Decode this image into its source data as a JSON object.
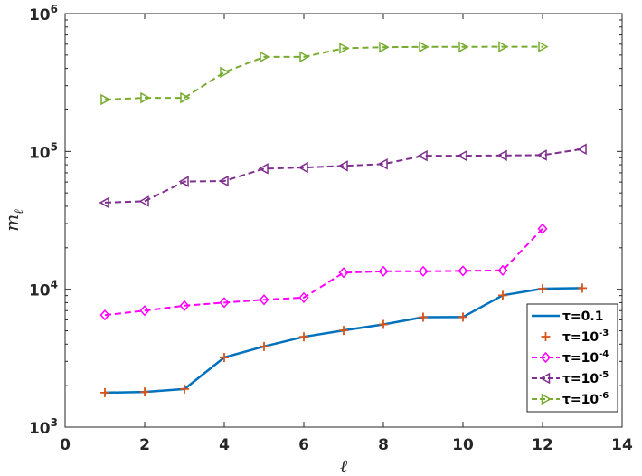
{
  "chart_data": {
    "type": "line",
    "xlabel": "ℓ",
    "ylabel_base": "m",
    "ylabel_sub": "ℓ",
    "x_scale": "linear",
    "y_scale": "log",
    "xlim": [
      0,
      14
    ],
    "ylim": [
      1000,
      1000000
    ],
    "x_ticks": [
      0,
      2,
      4,
      6,
      8,
      10,
      12,
      14
    ],
    "x_tick_labels": [
      "0",
      "2",
      "4",
      "6",
      "8",
      "10",
      "12",
      "14"
    ],
    "y_ticks": [
      1000,
      10000,
      100000,
      1000000
    ],
    "y_tick_labels": [
      {
        "base": "10",
        "exp": "3"
      },
      {
        "base": "10",
        "exp": "4"
      },
      {
        "base": "10",
        "exp": "5"
      },
      {
        "base": "10",
        "exp": "6"
      }
    ],
    "grid": false,
    "legend_position": "bottom-right",
    "series": [
      {
        "name": "τ=0.1",
        "label_main": "τ=0.1",
        "label_exp": "",
        "color": "#0072BD",
        "line": "solid",
        "marker": "none",
        "x": [
          1,
          2,
          3,
          4,
          5,
          6,
          7,
          8,
          9,
          10,
          11,
          12,
          13
        ],
        "y": [
          1780,
          1800,
          1890,
          3200,
          3850,
          4520,
          5030,
          5560,
          6270,
          6290,
          9040,
          10100,
          10200
        ]
      },
      {
        "name": "τ=10^-3",
        "label_main": "τ=10",
        "label_exp": "-3",
        "color": "#D95319",
        "line": "none",
        "marker": "plus",
        "x": [
          1,
          2,
          3,
          4,
          5,
          6,
          7,
          8,
          9,
          10,
          11,
          12,
          13
        ],
        "y": [
          1780,
          1800,
          1890,
          3200,
          3850,
          4520,
          5030,
          5560,
          6270,
          6290,
          9040,
          10100,
          10200
        ]
      },
      {
        "name": "τ=10^-4",
        "label_main": "τ=10",
        "label_exp": "-4",
        "color": "#FF00FF",
        "line": "dashed",
        "marker": "diamond",
        "x": [
          1,
          2,
          3,
          4,
          5,
          6,
          7,
          8,
          9,
          10,
          11,
          12
        ],
        "y": [
          6500,
          7000,
          7600,
          8000,
          8400,
          8700,
          13200,
          13500,
          13500,
          13600,
          13700,
          27500
        ]
      },
      {
        "name": "τ=10^-5",
        "label_main": "τ=10",
        "label_exp": "-5",
        "color": "#7E2F8E",
        "line": "dashed",
        "marker": "triangle-left",
        "x": [
          1,
          2,
          3,
          4,
          5,
          6,
          7,
          8,
          9,
          10,
          11,
          12,
          13
        ],
        "y": [
          42500,
          43500,
          60500,
          61000,
          75000,
          76500,
          78500,
          81000,
          93000,
          93000,
          93500,
          94000,
          104000
        ]
      },
      {
        "name": "τ=10^-6",
        "label_main": "τ=10",
        "label_exp": "-6",
        "color": "#77AC30",
        "line": "dashed",
        "marker": "triangle-right",
        "x": [
          1,
          2,
          3,
          4,
          5,
          6,
          7,
          8,
          9,
          10,
          11,
          12
        ],
        "y": [
          238000,
          245000,
          245000,
          375000,
          485000,
          485000,
          560000,
          570000,
          573000,
          573000,
          575000,
          575000
        ]
      }
    ]
  }
}
